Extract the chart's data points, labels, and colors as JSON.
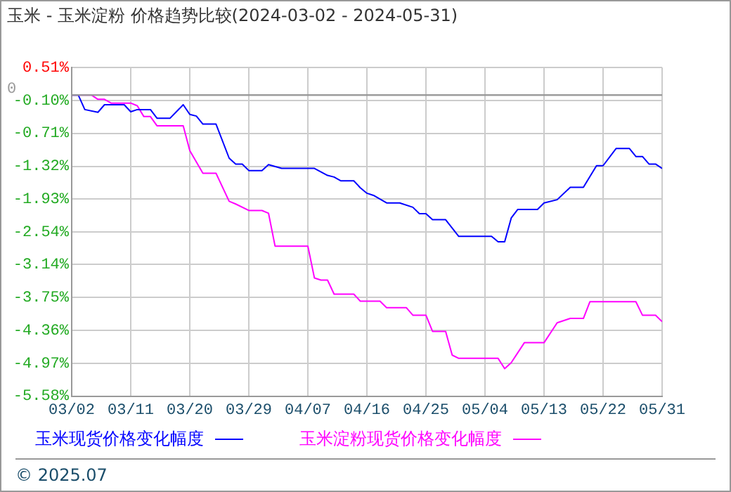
{
  "chart_data": {
    "type": "line",
    "title": "玉米 - 玉米淀粉 价格趋势比较(2024-03-02 - 2024-05-31)",
    "xlim": [
      "2024-03-02",
      "2024-05-31"
    ],
    "xticks": [
      {
        "value": "2024-03-02",
        "label": "03/02"
      },
      {
        "value": "2024-03-11",
        "label": "03/11"
      },
      {
        "value": "2024-03-20",
        "label": "03/20"
      },
      {
        "value": "2024-03-29",
        "label": "03/29"
      },
      {
        "value": "2024-04-07",
        "label": "04/07"
      },
      {
        "value": "2024-04-16",
        "label": "04/16"
      },
      {
        "value": "2024-04-25",
        "label": "04/25"
      },
      {
        "value": "2024-05-04",
        "label": "05/04"
      },
      {
        "value": "2024-05-13",
        "label": "05/13"
      },
      {
        "value": "2024-05-22",
        "label": "05/22"
      },
      {
        "value": "2024-05-31",
        "label": "05/31"
      }
    ],
    "ylim": [
      -5.58,
      0.51
    ],
    "yticks": [
      {
        "value": 0.51,
        "label": "0.51%"
      },
      {
        "value": -0.1,
        "label": "-0.10%"
      },
      {
        "value": -0.71,
        "label": "-0.71%"
      },
      {
        "value": -1.32,
        "label": "-1.32%"
      },
      {
        "value": -1.93,
        "label": "-1.93%"
      },
      {
        "value": -2.54,
        "label": "-2.54%"
      },
      {
        "value": -3.14,
        "label": "-3.14%"
      },
      {
        "value": -3.75,
        "label": "-3.75%"
      },
      {
        "value": -4.36,
        "label": "-4.36%"
      },
      {
        "value": -4.97,
        "label": "-4.97%"
      },
      {
        "value": -5.58,
        "label": "-5.58%"
      }
    ],
    "grid": true,
    "legend": "bottom",
    "marker": "none",
    "line_style": "solid",
    "ref_lines": [
      {
        "axis": "y",
        "value": 0,
        "label": "0",
        "color": "#999999"
      }
    ],
    "annotations": [
      "© 2025.07"
    ],
    "series": [
      {
        "name": "玉米现货价格变化幅度",
        "color": "#0000ff",
        "x": [
          "2024-03-02",
          "2024-03-03",
          "2024-03-04",
          "2024-03-06",
          "2024-03-07",
          "2024-03-10",
          "2024-03-11",
          "2024-03-12",
          "2024-03-14",
          "2024-03-15",
          "2024-03-17",
          "2024-03-19",
          "2024-03-20",
          "2024-03-21",
          "2024-03-22",
          "2024-03-24",
          "2024-03-26",
          "2024-03-27",
          "2024-03-28",
          "2024-03-29",
          "2024-03-31",
          "2024-04-01",
          "2024-04-03",
          "2024-04-08",
          "2024-04-10",
          "2024-04-11",
          "2024-04-12",
          "2024-04-14",
          "2024-04-15",
          "2024-04-16",
          "2024-04-17",
          "2024-04-19",
          "2024-04-21",
          "2024-04-23",
          "2024-04-24",
          "2024-04-25",
          "2024-04-26",
          "2024-04-28",
          "2024-04-30",
          "2024-05-05",
          "2024-05-06",
          "2024-05-07",
          "2024-05-08",
          "2024-05-09",
          "2024-05-12",
          "2024-05-13",
          "2024-05-15",
          "2024-05-17",
          "2024-05-19",
          "2024-05-21",
          "2024-05-22",
          "2024-05-24",
          "2024-05-26",
          "2024-05-27",
          "2024-05-28",
          "2024-05-29",
          "2024-05-30",
          "2024-05-31"
        ],
        "values": [
          0,
          0,
          -0.27,
          -0.32,
          -0.18,
          -0.18,
          -0.31,
          -0.27,
          -0.27,
          -0.43,
          -0.43,
          -0.18,
          -0.36,
          -0.39,
          -0.54,
          -0.54,
          -1.17,
          -1.28,
          -1.28,
          -1.4,
          -1.4,
          -1.29,
          -1.36,
          -1.36,
          -1.49,
          -1.52,
          -1.59,
          -1.59,
          -1.72,
          -1.82,
          -1.86,
          -2.0,
          -2.0,
          -2.08,
          -2.2,
          -2.2,
          -2.31,
          -2.31,
          -2.62,
          -2.62,
          -2.72,
          -2.72,
          -2.28,
          -2.12,
          -2.12,
          -2.0,
          -1.94,
          -1.71,
          -1.71,
          -1.31,
          -1.31,
          -0.99,
          -0.99,
          -1.14,
          -1.14,
          -1.28,
          -1.28,
          -1.36
        ]
      },
      {
        "name": "玉米淀粉现货价格变化幅度",
        "color": "#ff00ff",
        "x": [
          "2024-03-02",
          "2024-03-05",
          "2024-03-06",
          "2024-03-07",
          "2024-03-08",
          "2024-03-11",
          "2024-03-12",
          "2024-03-13",
          "2024-03-14",
          "2024-03-15",
          "2024-03-19",
          "2024-03-20",
          "2024-03-22",
          "2024-03-24",
          "2024-03-26",
          "2024-03-27",
          "2024-03-29",
          "2024-03-31",
          "2024-04-01",
          "2024-04-02",
          "2024-04-07",
          "2024-04-08",
          "2024-04-09",
          "2024-04-10",
          "2024-04-11",
          "2024-04-14",
          "2024-04-15",
          "2024-04-18",
          "2024-04-19",
          "2024-04-22",
          "2024-04-23",
          "2024-04-25",
          "2024-04-26",
          "2024-04-28",
          "2024-04-29",
          "2024-04-30",
          "2024-05-06",
          "2024-05-07",
          "2024-05-08",
          "2024-05-10",
          "2024-05-13",
          "2024-05-15",
          "2024-05-17",
          "2024-05-19",
          "2024-05-20",
          "2024-05-27",
          "2024-05-28",
          "2024-05-30",
          "2024-05-31"
        ],
        "values": [
          0,
          0,
          -0.08,
          -0.08,
          -0.15,
          -0.15,
          -0.2,
          -0.4,
          -0.4,
          -0.57,
          -0.57,
          -1.03,
          -1.45,
          -1.45,
          -1.97,
          -2.02,
          -2.14,
          -2.14,
          -2.19,
          -2.8,
          -2.8,
          -3.39,
          -3.43,
          -3.43,
          -3.69,
          -3.69,
          -3.82,
          -3.82,
          -3.94,
          -3.94,
          -4.08,
          -4.08,
          -4.38,
          -4.38,
          -4.82,
          -4.88,
          -4.88,
          -5.07,
          -4.96,
          -4.59,
          -4.59,
          -4.22,
          -4.14,
          -4.14,
          -3.83,
          -3.83,
          -4.08,
          -4.08,
          -4.2
        ]
      }
    ]
  }
}
